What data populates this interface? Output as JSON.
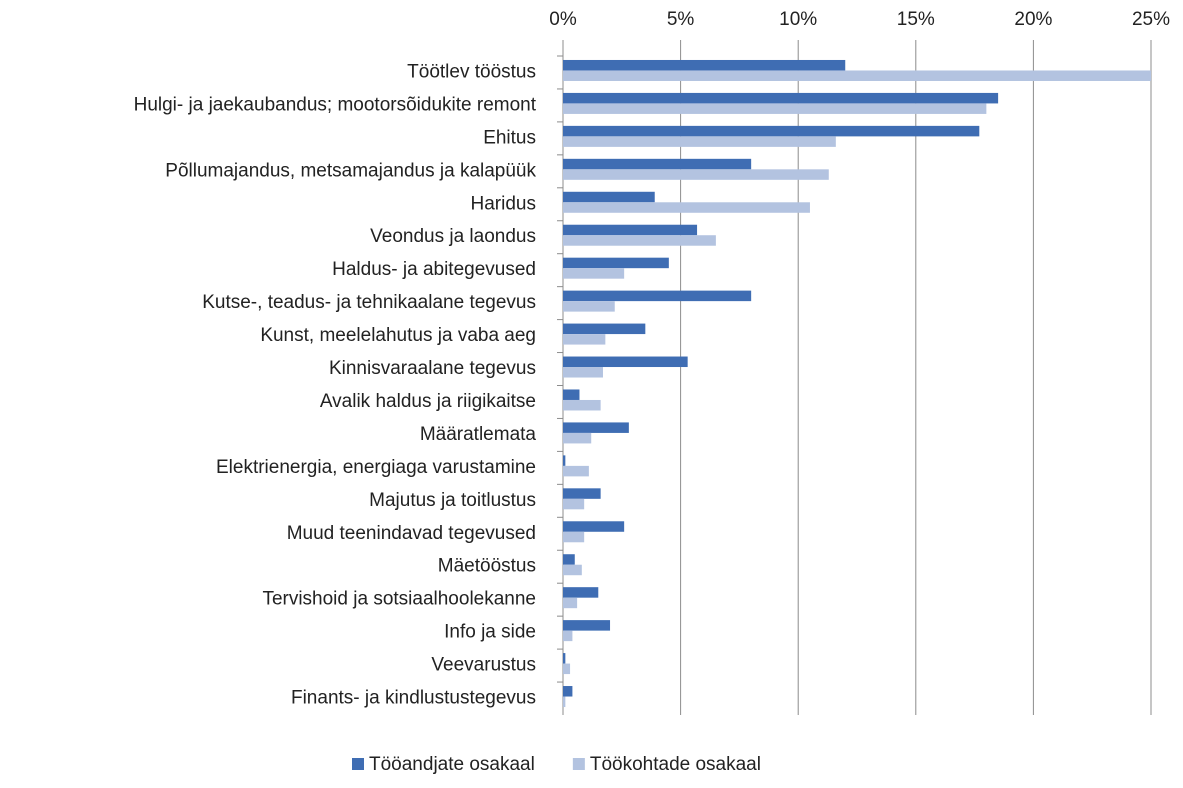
{
  "chart_data": {
    "type": "barh",
    "categories": [
      "Töötlev tööstus",
      "Hulgi- ja jaekaubandus; mootorsõidukite remont",
      "Ehitus",
      "Põllumajandus, metsamajandus ja kalapüük",
      "Haridus",
      "Veondus ja laondus",
      "Haldus- ja abitegevused",
      "Kutse-, teadus- ja tehnikaalane tegevus",
      "Kunst, meelelahutus ja vaba aeg",
      "Kinnisvaraalane tegevus",
      "Avalik haldus ja riigikaitse",
      "Määratlemata",
      "Elektrienergia, energiaga varustamine",
      "Majutus ja toitlustus",
      "Muud teenindavad tegevused",
      "Mäetööstus",
      "Tervishoid ja sotsiaalhoolekanne",
      "Info ja side",
      "Veevarustus",
      "Finants- ja kindlustustegevus"
    ],
    "series": [
      {
        "name": "Tööandjate osakaal",
        "color": "#3f6db3",
        "values": [
          12.0,
          18.5,
          17.7,
          8.0,
          3.9,
          5.7,
          4.5,
          8.0,
          3.5,
          5.3,
          0.7,
          2.8,
          0.1,
          1.6,
          2.6,
          0.5,
          1.5,
          2.0,
          0.1,
          0.4
        ]
      },
      {
        "name": "Töökohtade osakaal",
        "color": "#b3c3e0",
        "values": [
          25.0,
          18.0,
          11.6,
          11.3,
          10.5,
          6.5,
          2.6,
          2.2,
          1.8,
          1.7,
          1.6,
          1.2,
          1.1,
          0.9,
          0.9,
          0.8,
          0.6,
          0.4,
          0.3,
          0.1
        ]
      }
    ],
    "xlim": [
      0,
      25
    ],
    "xticks": [
      {
        "value": 0,
        "label": "0%"
      },
      {
        "value": 5,
        "label": "5%"
      },
      {
        "value": 10,
        "label": "10%"
      },
      {
        "value": 15,
        "label": "15%"
      },
      {
        "value": 20,
        "label": "20%"
      },
      {
        "value": 25,
        "label": "25%"
      }
    ],
    "grid": true,
    "legend": "bottom"
  }
}
